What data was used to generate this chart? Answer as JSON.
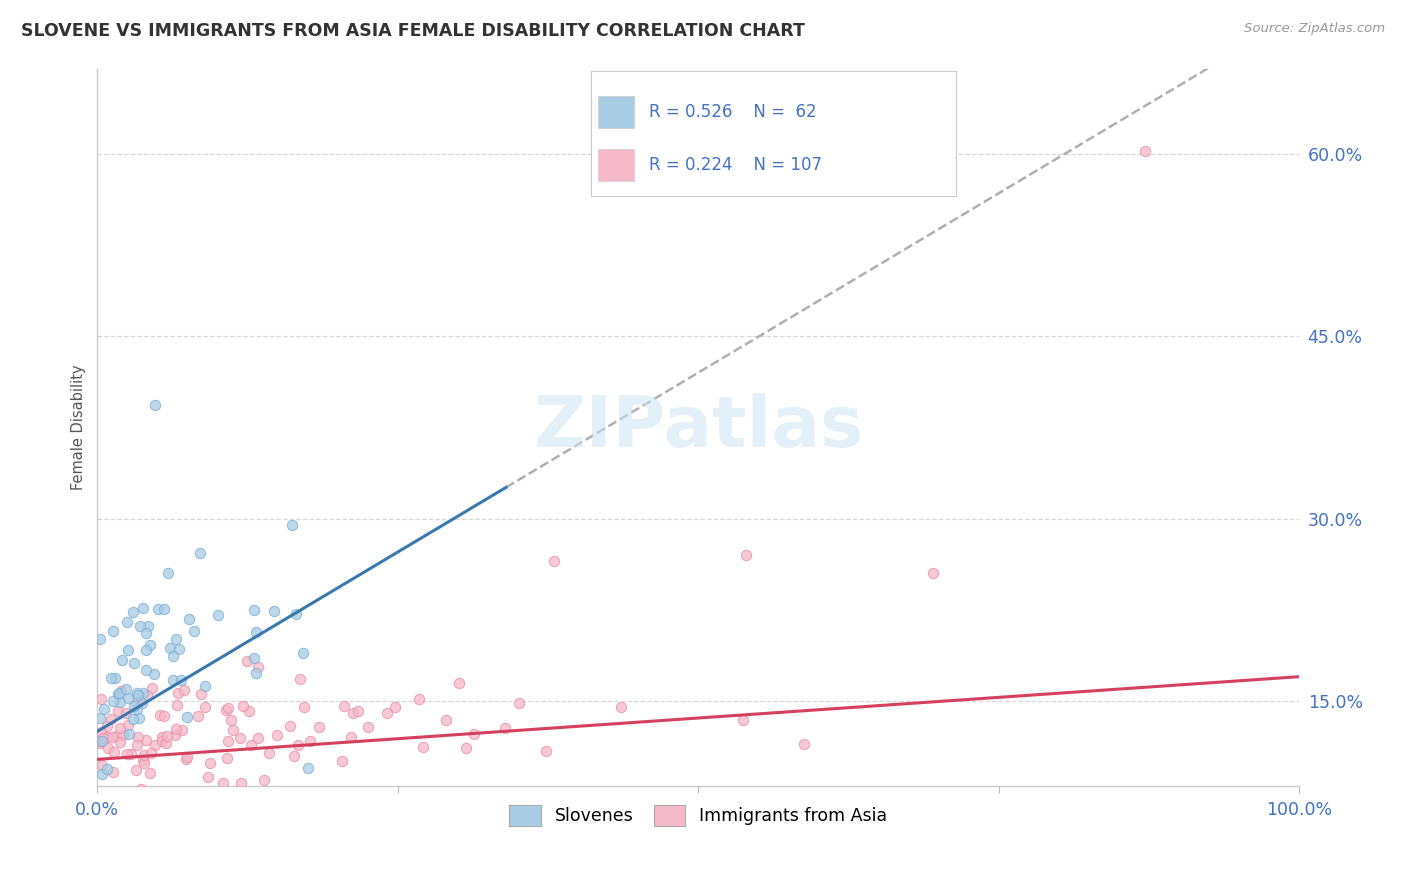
{
  "title": "SLOVENE VS IMMIGRANTS FROM ASIA FEMALE DISABILITY CORRELATION CHART",
  "source": "Source: ZipAtlas.com",
  "ylabel": "Female Disability",
  "xlim": [
    0,
    1.0
  ],
  "ylim": [
    0.08,
    0.67
  ],
  "ytick_positions": [
    0.15,
    0.3,
    0.45,
    0.6
  ],
  "ytick_labels": [
    "15.0%",
    "30.0%",
    "45.0%",
    "60.0%"
  ],
  "blue_color": "#a8cce4",
  "pink_color": "#f4b8c8",
  "blue_scatter_edge": "#7ab0d4",
  "pink_scatter_edge": "#e890a8",
  "blue_line_color": "#3b78b0",
  "pink_line_color": "#d64060",
  "dash_line_color": "#b0b0b0",
  "legend_text_color": "#4472c4",
  "title_color": "#333333",
  "grid_color": "#d8d8d8",
  "source_color": "#999999"
}
